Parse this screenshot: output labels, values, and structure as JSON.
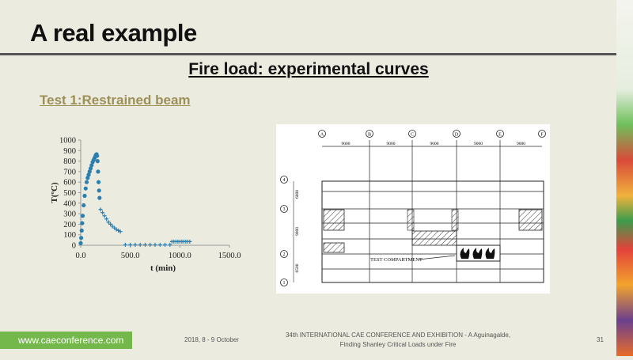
{
  "slide": {
    "title": "A real example",
    "subtitle": "Fire load: experimental curves",
    "section": "Test 1:Restrained beam"
  },
  "chart_data": {
    "type": "scatter",
    "xlabel": "t (min)",
    "ylabel": "T(ºC)",
    "xlim": [
      0,
      1500
    ],
    "ylim": [
      0,
      1000
    ],
    "xticks": [
      "0.0",
      "500.0",
      "1000.0",
      "1500.0"
    ],
    "yticks": [
      "0",
      "100",
      "200",
      "300",
      "400",
      "500",
      "600",
      "700",
      "800",
      "900",
      "1000"
    ],
    "series": [
      {
        "color": "#2b7fb0",
        "marker": "dot",
        "x": [
          0,
          5,
          10,
          15,
          20,
          30,
          40,
          50,
          60,
          70,
          80,
          90,
          100,
          110,
          120,
          130,
          140,
          150,
          155,
          160,
          165,
          170,
          175,
          180,
          185,
          190
        ],
        "y": [
          20,
          70,
          140,
          210,
          280,
          380,
          470,
          540,
          600,
          640,
          670,
          700,
          730,
          760,
          790,
          810,
          830,
          850,
          860,
          865,
          850,
          800,
          700,
          600,
          520,
          450
        ]
      },
      {
        "color": "#2b7fb0",
        "marker": "plus",
        "x": [
          200,
          220,
          240,
          260,
          280,
          300,
          320,
          340,
          360,
          380,
          400,
          450,
          500,
          550,
          600,
          650,
          700,
          750,
          800,
          850,
          900,
          920,
          940,
          960,
          980,
          1000,
          1020,
          1040,
          1060,
          1080,
          1100
        ],
        "y": [
          340,
          310,
          280,
          250,
          220,
          200,
          180,
          165,
          150,
          140,
          130,
          5,
          5,
          5,
          5,
          5,
          5,
          5,
          5,
          5,
          5,
          35,
          35,
          35,
          35,
          35,
          35,
          35,
          35,
          35,
          35
        ]
      }
    ]
  },
  "drawing": {
    "grid_labels": [
      "A",
      "B",
      "C",
      "D",
      "E",
      "F"
    ],
    "row_labels": [
      "4",
      "3",
      "2",
      "1"
    ],
    "spans": [
      "9000",
      "9000",
      "9000",
      "9000",
      "9000"
    ],
    "row_dims": [
      "6000",
      "9000",
      "6500"
    ],
    "compartment_label": "TEST COMPARTMENT"
  },
  "footer": {
    "url": "www.caeconference.com",
    "date": "2018, 8 -  9 October",
    "conference_line1": "34th INTERNATIONAL CAE CONFERENCE AND EXHIBITION - A Aguinagalde,",
    "conference_line2": "Finding Shanley Critical Loads under Fire",
    "page": "31"
  }
}
